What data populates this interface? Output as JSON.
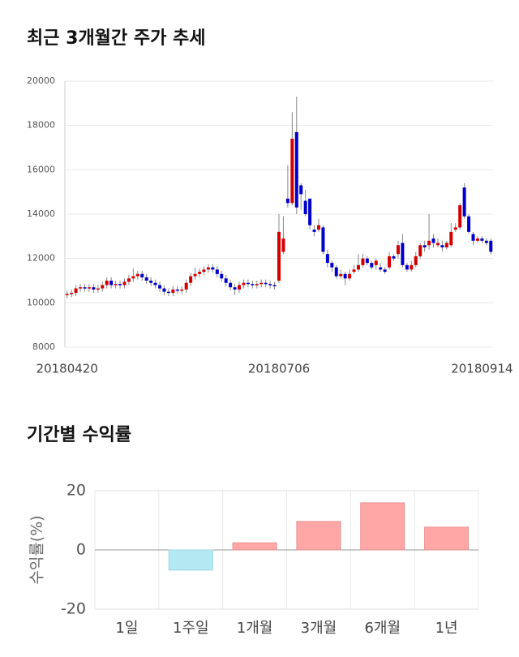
{
  "chart_data": [
    {
      "type": "candlestick",
      "title": "최근 3개월간 주가 추세",
      "categories": [
        "20180420",
        null,
        null,
        null,
        null,
        null,
        null,
        null,
        null,
        null,
        null,
        null,
        null,
        null,
        null,
        null,
        null,
        null,
        null,
        null,
        null,
        null,
        null,
        null,
        null,
        null,
        null,
        null,
        null,
        null,
        null,
        null,
        null,
        null,
        null,
        null,
        null,
        null,
        null,
        null,
        null,
        null,
        null,
        null,
        null,
        null,
        null,
        null,
        "20180706",
        null,
        null,
        null,
        null,
        null,
        null,
        null,
        null,
        null,
        null,
        null,
        null,
        null,
        null,
        null,
        null,
        null,
        null,
        null,
        null,
        null,
        null,
        null,
        null,
        null,
        null,
        null,
        null,
        null,
        null,
        null,
        null,
        null,
        null,
        null,
        null,
        null,
        null,
        null,
        null,
        null,
        null,
        null,
        null,
        null,
        "20180914",
        null,
        null
      ],
      "open": [
        10350,
        10400,
        10450,
        10650,
        10700,
        10650,
        10700,
        10600,
        10650,
        10800,
        11000,
        10800,
        10850,
        10800,
        10950,
        11100,
        11200,
        11300,
        11150,
        11000,
        10900,
        10800,
        10650,
        10500,
        10450,
        10600,
        10550,
        10600,
        10900,
        11200,
        11300,
        11400,
        11500,
        11600,
        11500,
        11300,
        11100,
        10900,
        10700,
        10600,
        10800,
        10900,
        10850,
        10800,
        10850,
        10900,
        10850,
        10800,
        11000,
        12300,
        14700,
        14500,
        17700,
        15300,
        14600,
        14700,
        13300,
        13300,
        13400,
        12200,
        11800,
        11600,
        11200,
        11300,
        11100,
        11400,
        11500,
        11700,
        12000,
        11800,
        11700,
        11600,
        11500,
        11600,
        12100,
        12200,
        12700,
        11700,
        11500,
        11700,
        12100,
        12600,
        12600,
        12900,
        12600,
        12600,
        12500,
        12600,
        13300,
        13400,
        15200,
        13900,
        13100,
        12800,
        12900,
        12800,
        12800
      ],
      "high": [
        10550,
        10600,
        10800,
        10850,
        10850,
        10850,
        10850,
        10800,
        10950,
        11150,
        11150,
        11000,
        11000,
        11100,
        11250,
        11550,
        11450,
        11450,
        11300,
        11150,
        11050,
        10950,
        10800,
        10650,
        10750,
        10750,
        10750,
        11050,
        11350,
        11600,
        11550,
        11650,
        11750,
        11750,
        11650,
        11450,
        11250,
        11050,
        10850,
        10950,
        11050,
        11050,
        11000,
        11000,
        11050,
        11050,
        11000,
        10950,
        14000,
        13900,
        16200,
        18600,
        19300,
        15400,
        15100,
        14700,
        13500,
        13800,
        13500,
        12400,
        11900,
        11700,
        11500,
        11400,
        11500,
        11700,
        12200,
        12200,
        12100,
        11900,
        12000,
        11800,
        11600,
        12300,
        12200,
        12800,
        13100,
        11800,
        11900,
        12300,
        12700,
        12800,
        14000,
        13100,
        12900,
        12800,
        12800,
        13600,
        13600,
        14500,
        15400,
        14000,
        13200,
        13000,
        13000,
        12900,
        12900
      ],
      "low": [
        10200,
        10250,
        10300,
        10500,
        10500,
        10500,
        10450,
        10450,
        10500,
        10650,
        10650,
        10650,
        10650,
        10650,
        10800,
        10950,
        11050,
        11000,
        10850,
        10750,
        10650,
        10500,
        10350,
        10300,
        10300,
        10400,
        10400,
        10450,
        10750,
        11050,
        11150,
        11250,
        11350,
        11350,
        11150,
        10950,
        10750,
        10550,
        10350,
        10450,
        10650,
        10700,
        10650,
        10650,
        10700,
        10700,
        10650,
        10600,
        10900,
        12200,
        14300,
        14400,
        14000,
        14200,
        13900,
        13300,
        13000,
        13200,
        12200,
        11600,
        11400,
        11100,
        11100,
        10800,
        11000,
        11300,
        11400,
        11600,
        11700,
        11500,
        11500,
        11400,
        11300,
        11500,
        11900,
        12000,
        11600,
        11400,
        11400,
        11600,
        12000,
        12300,
        12400,
        12500,
        12500,
        12300,
        12400,
        12500,
        13200,
        13300,
        13800,
        13100,
        12600,
        12700,
        12700,
        12600,
        12200
      ],
      "close": [
        10400,
        10450,
        10650,
        10700,
        10650,
        10700,
        10600,
        10650,
        10800,
        11000,
        10800,
        10850,
        10800,
        10950,
        11100,
        11200,
        11300,
        11150,
        11000,
        10900,
        10800,
        10650,
        10500,
        10450,
        10600,
        10550,
        10600,
        10900,
        11200,
        11300,
        11400,
        11500,
        11600,
        11500,
        11300,
        11100,
        10900,
        10700,
        10600,
        10800,
        10900,
        10850,
        10800,
        10850,
        10900,
        10850,
        10800,
        10750,
        13200,
        12900,
        14500,
        17400,
        14300,
        14900,
        14000,
        13500,
        13200,
        13500,
        12300,
        11800,
        11600,
        11200,
        11300,
        11100,
        11300,
        11500,
        11700,
        12000,
        11800,
        11600,
        11900,
        11500,
        11400,
        12100,
        12000,
        12600,
        11700,
        11500,
        11700,
        12100,
        12600,
        12500,
        12800,
        12700,
        12700,
        12500,
        12700,
        13200,
        13400,
        14400,
        13900,
        13200,
        12800,
        12900,
        12800,
        12700,
        12300
      ],
      "up_color": "#d40000",
      "down_color": "#0000cc",
      "ylim": [
        8000,
        20000
      ],
      "yticks": [
        8000,
        10000,
        12000,
        14000,
        16000,
        18000,
        20000
      ],
      "grid": true
    },
    {
      "type": "bar",
      "title": "기간별 수익률",
      "ylabel": "수익률(%)",
      "categories": [
        "1일",
        "1주일",
        "1개월",
        "3개월",
        "6개월",
        "1년"
      ],
      "values": [
        0,
        -6.8,
        2.4,
        9.6,
        15.9,
        7.7
      ],
      "positive_color": "#ffa6a6",
      "negative_color": "#b3e9f2",
      "ylim": [
        -20,
        20
      ],
      "yticks": [
        -20,
        0,
        20
      ],
      "grid": true
    }
  ]
}
